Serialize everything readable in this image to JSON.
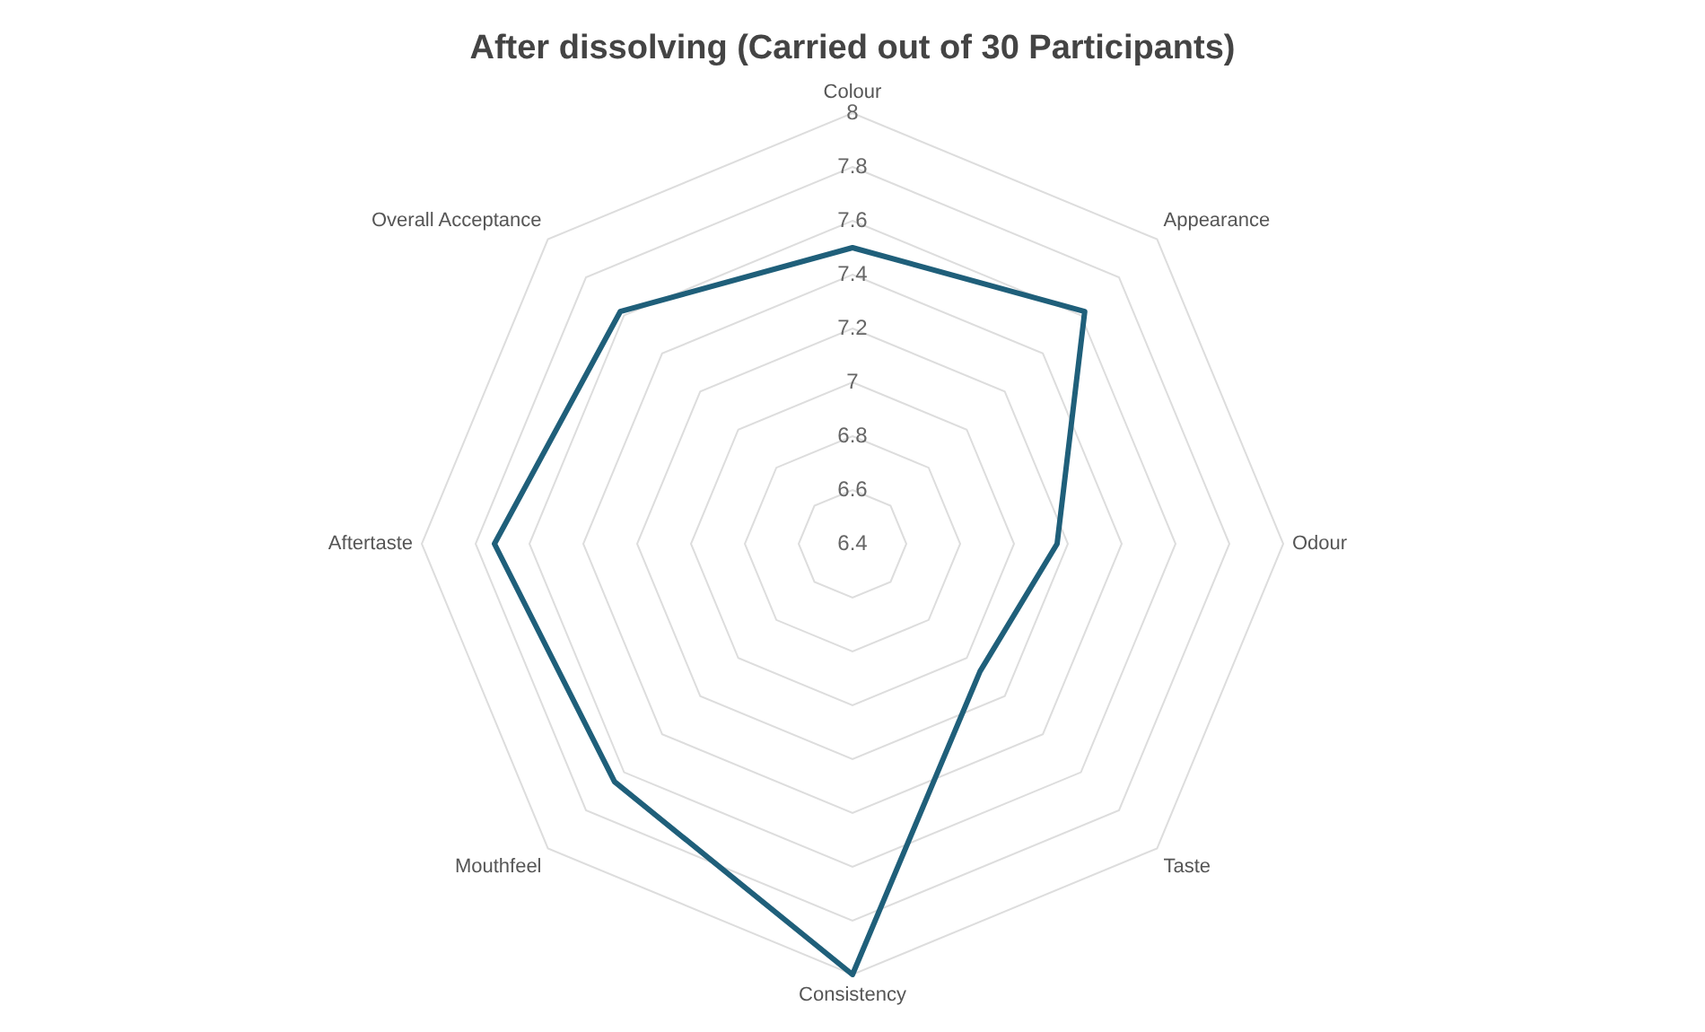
{
  "chart_data": {
    "type": "radar",
    "title": "After dissolving (Carried out of 30 Participants)",
    "categories": [
      "Colour",
      "Appearance",
      "Odour",
      "Taste",
      "Consistency",
      "Mouthfeel",
      "Aftertaste",
      "Overall Acceptance"
    ],
    "series": [
      {
        "color": "#1f5f7a",
        "values": [
          7.5,
          7.62,
          7.16,
          7.07,
          8.0,
          7.65,
          7.73,
          7.62
        ]
      }
    ],
    "ylim": [
      6.4,
      8
    ],
    "yticks": [
      6.4,
      6.6,
      6.8,
      7,
      7.2,
      7.4,
      7.6,
      7.8,
      8
    ],
    "grid": true,
    "legend": false,
    "marker": "none"
  }
}
